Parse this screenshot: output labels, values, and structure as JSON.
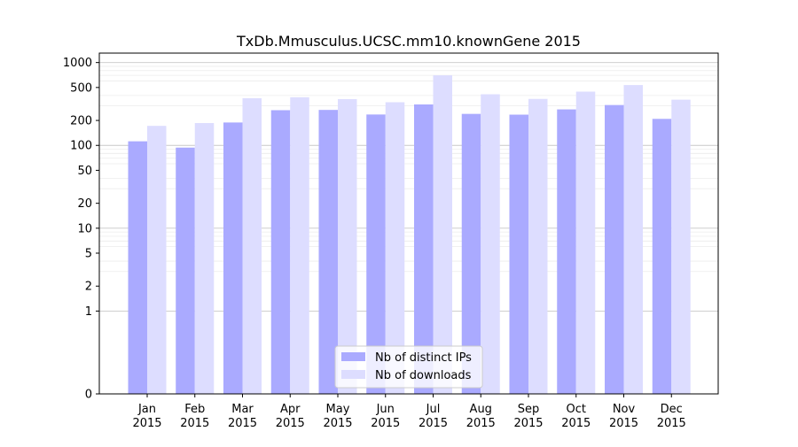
{
  "chart_data": {
    "type": "bar",
    "title": "TxDb.Mmusculus.UCSC.mm10.knownGene 2015",
    "xlabel": "",
    "ylabel": "",
    "y_scale": "symlog",
    "y_range": [
      0,
      1300
    ],
    "y_ticks": [
      {
        "value": 0,
        "label": "0"
      },
      {
        "value": 1,
        "label": "1"
      },
      {
        "value": 2,
        "label": "2"
      },
      {
        "value": 5,
        "label": "5"
      },
      {
        "value": 10,
        "label": "10"
      },
      {
        "value": 20,
        "label": "20"
      },
      {
        "value": 50,
        "label": "50"
      },
      {
        "value": 100,
        "label": "100"
      },
      {
        "value": 200,
        "label": "200"
      },
      {
        "value": 500,
        "label": "500"
      },
      {
        "value": 1000,
        "label": "1000"
      }
    ],
    "grid": true,
    "legend_position": "bottom-center",
    "categories": [
      {
        "month": "Jan",
        "year": "2015"
      },
      {
        "month": "Feb",
        "year": "2015"
      },
      {
        "month": "Mar",
        "year": "2015"
      },
      {
        "month": "Apr",
        "year": "2015"
      },
      {
        "month": "May",
        "year": "2015"
      },
      {
        "month": "Jun",
        "year": "2015"
      },
      {
        "month": "Jul",
        "year": "2015"
      },
      {
        "month": "Aug",
        "year": "2015"
      },
      {
        "month": "Sep",
        "year": "2015"
      },
      {
        "month": "Oct",
        "year": "2015"
      },
      {
        "month": "Nov",
        "year": "2015"
      },
      {
        "month": "Dec",
        "year": "2015"
      }
    ],
    "series": [
      {
        "name": "Nb of distinct IPs",
        "color": "#aaaaff",
        "values": [
          112,
          94,
          189,
          266,
          268,
          236,
          312,
          240,
          235,
          272,
          307,
          209
        ]
      },
      {
        "name": "Nb of downloads",
        "color": "#ddddff",
        "values": [
          172,
          186,
          371,
          381,
          362,
          332,
          701,
          414,
          364,
          446,
          535,
          356
        ]
      }
    ]
  }
}
